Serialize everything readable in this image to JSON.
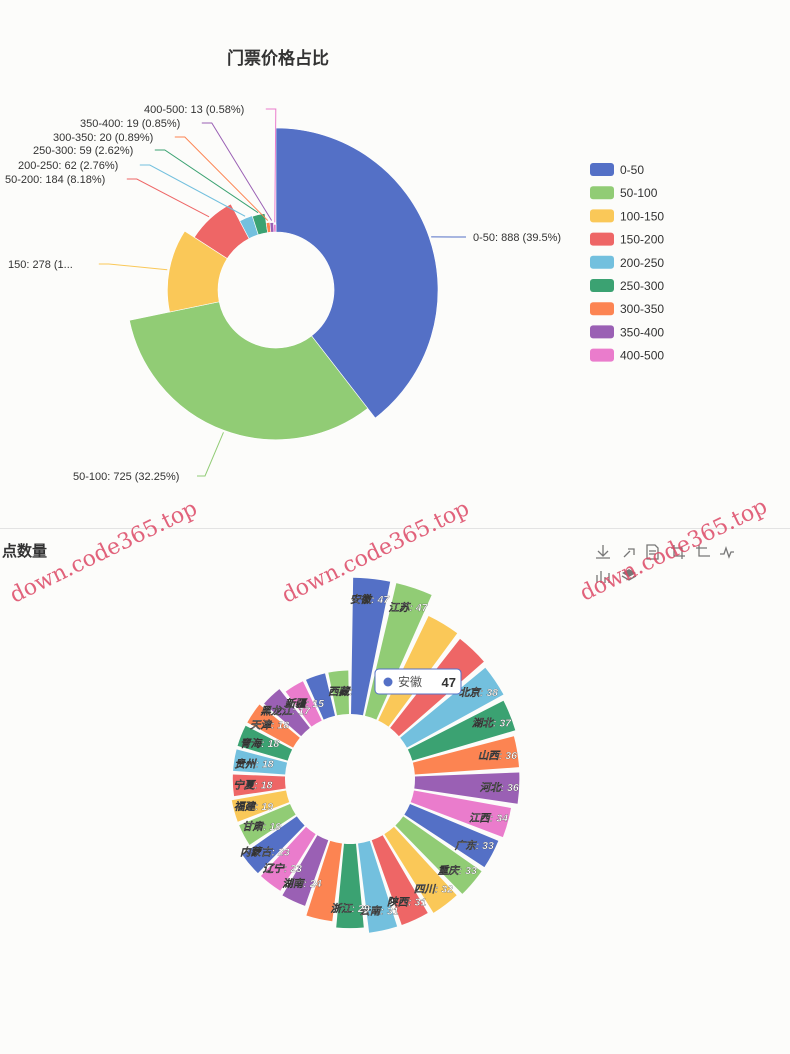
{
  "watermark_text": "down.code365.top",
  "chart_data": [
    {
      "type": "pie",
      "variant": "rose-donut",
      "title": "门票价格占比",
      "legend_position": "right",
      "slices": [
        {
          "name": "0-50",
          "value": 888,
          "percent": "39.5%",
          "color": "#5470c6"
        },
        {
          "name": "50-100",
          "value": 725,
          "percent": "32.25%",
          "color": "#91cc75"
        },
        {
          "name": "100-150",
          "value": 278,
          "percent": "12.37%",
          "color": "#fac858"
        },
        {
          "name": "150-200",
          "value": 184,
          "percent": "8.18%",
          "color": "#ee6666"
        },
        {
          "name": "200-250",
          "value": 62,
          "percent": "2.76%",
          "color": "#73c0de"
        },
        {
          "name": "250-300",
          "value": 59,
          "percent": "2.62%",
          "color": "#3ba272"
        },
        {
          "name": "300-350",
          "value": 20,
          "percent": "0.89%",
          "color": "#fc8452"
        },
        {
          "name": "350-400",
          "value": 19,
          "percent": "0.85%",
          "color": "#9a60b4"
        },
        {
          "name": "400-500",
          "value": 13,
          "percent": "0.58%",
          "color": "#ea7ccc"
        }
      ],
      "labels": [
        "0-50: 888 (39.5%)",
        "50-100: 725 (32.25%)",
        "150: 278 (1...",
        "50-200: 184 (8.18%)",
        "200-250: 62 (2.76%)",
        "250-300: 59 (2.62%)",
        "300-350: 20 (0.89%)",
        "350-400: 19 (0.85%)",
        "400-500: 13 (0.58%)"
      ]
    },
    {
      "type": "bar",
      "variant": "polar-radial",
      "title": "点数量",
      "tooltip": {
        "name": "安徽",
        "value": 47
      },
      "categories": [
        "安徽",
        "江苏",
        "浙江",
        "上海",
        "北京",
        "湖北",
        "山西",
        "河北",
        "江西",
        "广东",
        "重庆",
        "四川",
        "陕西",
        "云南",
        "浙江",
        "福建",
        "湖南",
        "辽宁",
        "内蒙古",
        "甘肃",
        "福建",
        "宁夏",
        "贵州",
        "青海",
        "天津",
        "黑龙江",
        "新疆",
        "西藏",
        "西藏"
      ],
      "values": [
        47,
        47,
        40,
        39,
        38,
        37,
        36,
        36,
        34,
        33,
        33,
        32,
        31,
        31,
        29,
        27,
        24,
        23,
        23,
        19,
        19,
        18,
        18,
        18,
        18,
        17,
        15,
        15,
        15
      ],
      "labels": [
        "安徽: 47",
        "江苏: 47",
        "",
        "",
        "北京: 38",
        "湖北: 37",
        "山西: 36",
        "河北: 36",
        "江西: 34",
        "广东: 33",
        "重庆: 33",
        "四川: 32",
        "陕西: 31",
        "云南: 31",
        "浙江: 29",
        "",
        "湖南: 24",
        "辽宁: 23",
        "内蒙古: 23",
        "甘肃: 19",
        "福建: 19",
        "宁夏: 18",
        "贵州: 18",
        "青海: 18",
        "天津: 18",
        "黑龙江: 17",
        "新疆: 15",
        "",
        "西藏:"
      ],
      "colors": [
        "#5470c6",
        "#91cc75",
        "#fac858",
        "#ee6666",
        "#73c0de",
        "#3ba272",
        "#fc8452",
        "#9a60b4",
        "#ea7ccc"
      ]
    }
  ]
}
